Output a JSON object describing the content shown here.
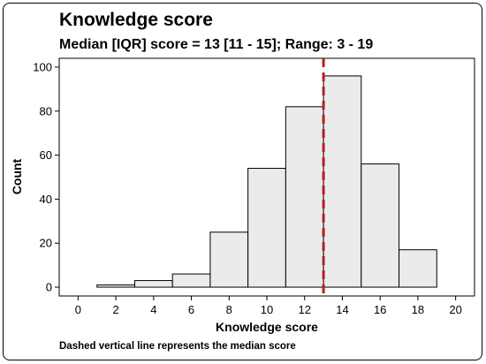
{
  "chart_data": {
    "type": "bar",
    "title": "Knowledge score",
    "subtitle": "Median [IQR] score = 13 [11 - 15]; Range: 3 - 19",
    "xlabel": "Knowledge score",
    "ylabel": "Count",
    "caption": "Dashed vertical line represents the median score",
    "xlim": [
      -1,
      21
    ],
    "ylim": [
      -4,
      104
    ],
    "xticks": [
      "0",
      "2",
      "4",
      "6",
      "8",
      "10",
      "12",
      "14",
      "16",
      "18",
      "20"
    ],
    "yticks": [
      "0",
      "20",
      "40",
      "60",
      "80",
      "100"
    ],
    "bins": [
      {
        "start": 1,
        "end": 3,
        "value": 1
      },
      {
        "start": 3,
        "end": 5,
        "value": 3
      },
      {
        "start": 5,
        "end": 7,
        "value": 6
      },
      {
        "start": 7,
        "end": 9,
        "value": 25
      },
      {
        "start": 9,
        "end": 11,
        "value": 54
      },
      {
        "start": 11,
        "end": 13,
        "value": 82
      },
      {
        "start": 13,
        "end": 15,
        "value": 96
      },
      {
        "start": 15,
        "end": 17,
        "value": 56
      },
      {
        "start": 17,
        "end": 19,
        "value": 17
      }
    ],
    "median": 13,
    "grid": false,
    "colors": {
      "bar_fill": "#ebebeb",
      "bar_stroke": "#000000",
      "median_line": "#b22222"
    }
  }
}
